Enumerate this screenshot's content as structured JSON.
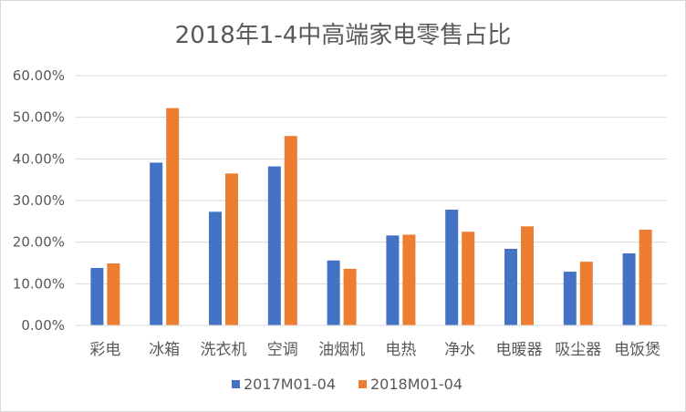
{
  "chart_data": {
    "type": "bar",
    "title": "2018年1-4中高端家电零售占比",
    "xlabel": "",
    "ylabel": "",
    "ylim": [
      0,
      60
    ],
    "yticks": [
      "0.00%",
      "10.00%",
      "20.00%",
      "30.00%",
      "40.00%",
      "50.00%",
      "60.00%"
    ],
    "grid": true,
    "legend_position": "bottom",
    "categories": [
      "彩电",
      "冰箱",
      "洗衣机",
      "空调",
      "油烟机",
      "电热",
      "净水",
      "电暖器",
      "吸尘器",
      "电饭煲"
    ],
    "series": [
      {
        "name": "2017M01-04",
        "color": "#4472c4",
        "values": [
          13.8,
          39.1,
          27.3,
          38.2,
          15.6,
          21.6,
          27.8,
          18.4,
          12.9,
          17.3
        ]
      },
      {
        "name": "2018M01-04",
        "color": "#ed7d31",
        "values": [
          14.9,
          52.2,
          36.5,
          45.5,
          13.6,
          21.8,
          22.5,
          23.8,
          15.3,
          23.0
        ]
      }
    ]
  }
}
